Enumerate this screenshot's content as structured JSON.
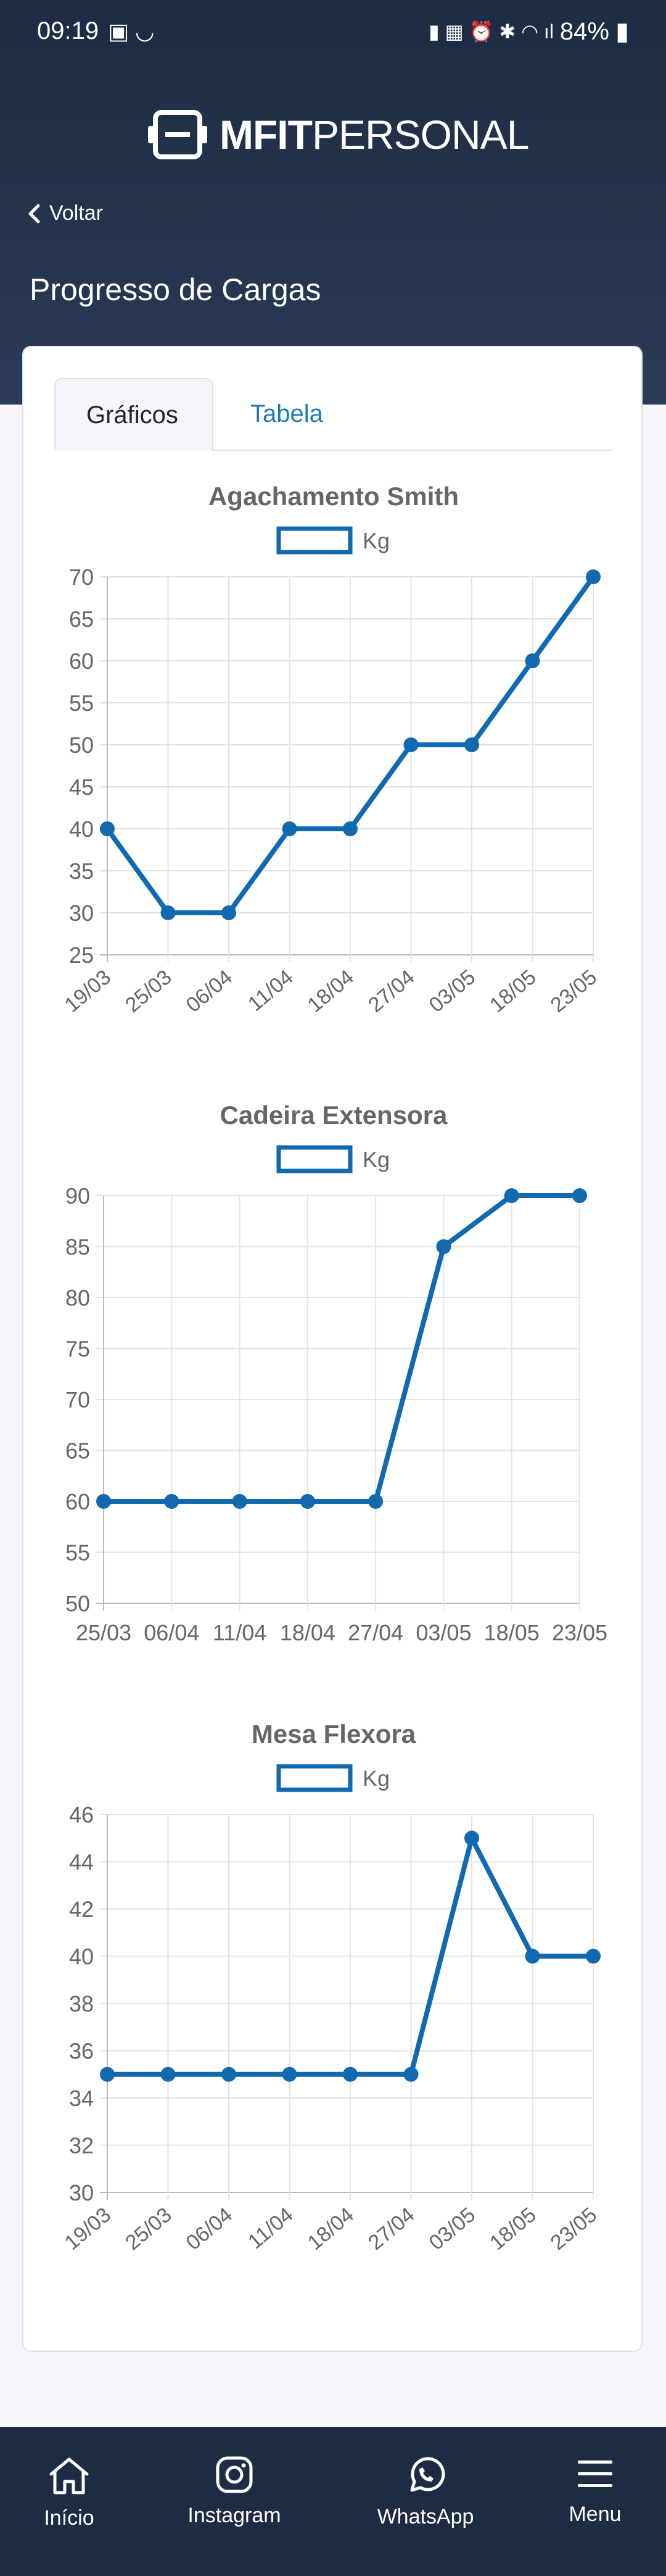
{
  "status_bar": {
    "time": "09:19",
    "battery": "84%"
  },
  "header": {
    "logo_bold": "MFIT",
    "logo_light": "PERSONAL",
    "back_label": "Voltar",
    "page_title": "Progresso de Cargas"
  },
  "tabs": [
    {
      "label": "Gráficos",
      "active": true
    },
    {
      "label": "Tabela",
      "active": false
    }
  ],
  "colors": {
    "accent": "#1169b0",
    "header_bg": "#1d2b44",
    "tab_inactive": "#1e7ab8"
  },
  "chart_data": [
    {
      "type": "line",
      "title": "Agachamento Smith",
      "legend": "Kg",
      "x": [
        "19/03",
        "25/03",
        "06/04",
        "11/04",
        "18/04",
        "27/04",
        "03/05",
        "18/05",
        "23/05"
      ],
      "values": [
        40,
        30,
        30,
        40,
        40,
        50,
        50,
        60,
        70
      ],
      "ylim": [
        25,
        70
      ],
      "yticks": [
        25,
        30,
        35,
        40,
        45,
        50,
        55,
        60,
        65,
        70
      ],
      "rotate_x_labels": true,
      "grid": true
    },
    {
      "type": "line",
      "title": "Cadeira Extensora",
      "legend": "Kg",
      "x": [
        "25/03",
        "06/04",
        "11/04",
        "18/04",
        "27/04",
        "03/05",
        "18/05",
        "23/05"
      ],
      "values": [
        60,
        60,
        60,
        60,
        60,
        85,
        90,
        90
      ],
      "ylim": [
        50,
        90
      ],
      "yticks": [
        50,
        55,
        60,
        65,
        70,
        75,
        80,
        85,
        90
      ],
      "rotate_x_labels": false,
      "grid": true
    },
    {
      "type": "line",
      "title": "Mesa Flexora",
      "legend": "Kg",
      "x": [
        "19/03",
        "25/03",
        "06/04",
        "11/04",
        "18/04",
        "27/04",
        "03/05",
        "18/05",
        "23/05"
      ],
      "values": [
        35,
        35,
        35,
        35,
        35,
        35,
        45,
        40,
        40
      ],
      "ylim": [
        30,
        46
      ],
      "yticks": [
        30,
        32,
        34,
        36,
        38,
        40,
        42,
        44,
        46
      ],
      "rotate_x_labels": true,
      "grid": true
    }
  ],
  "bottom_nav": [
    {
      "label": "Início",
      "icon": "home-icon"
    },
    {
      "label": "Instagram",
      "icon": "instagram-icon"
    },
    {
      "label": "WhatsApp",
      "icon": "whatsapp-icon"
    },
    {
      "label": "Menu",
      "icon": "menu-icon"
    }
  ]
}
